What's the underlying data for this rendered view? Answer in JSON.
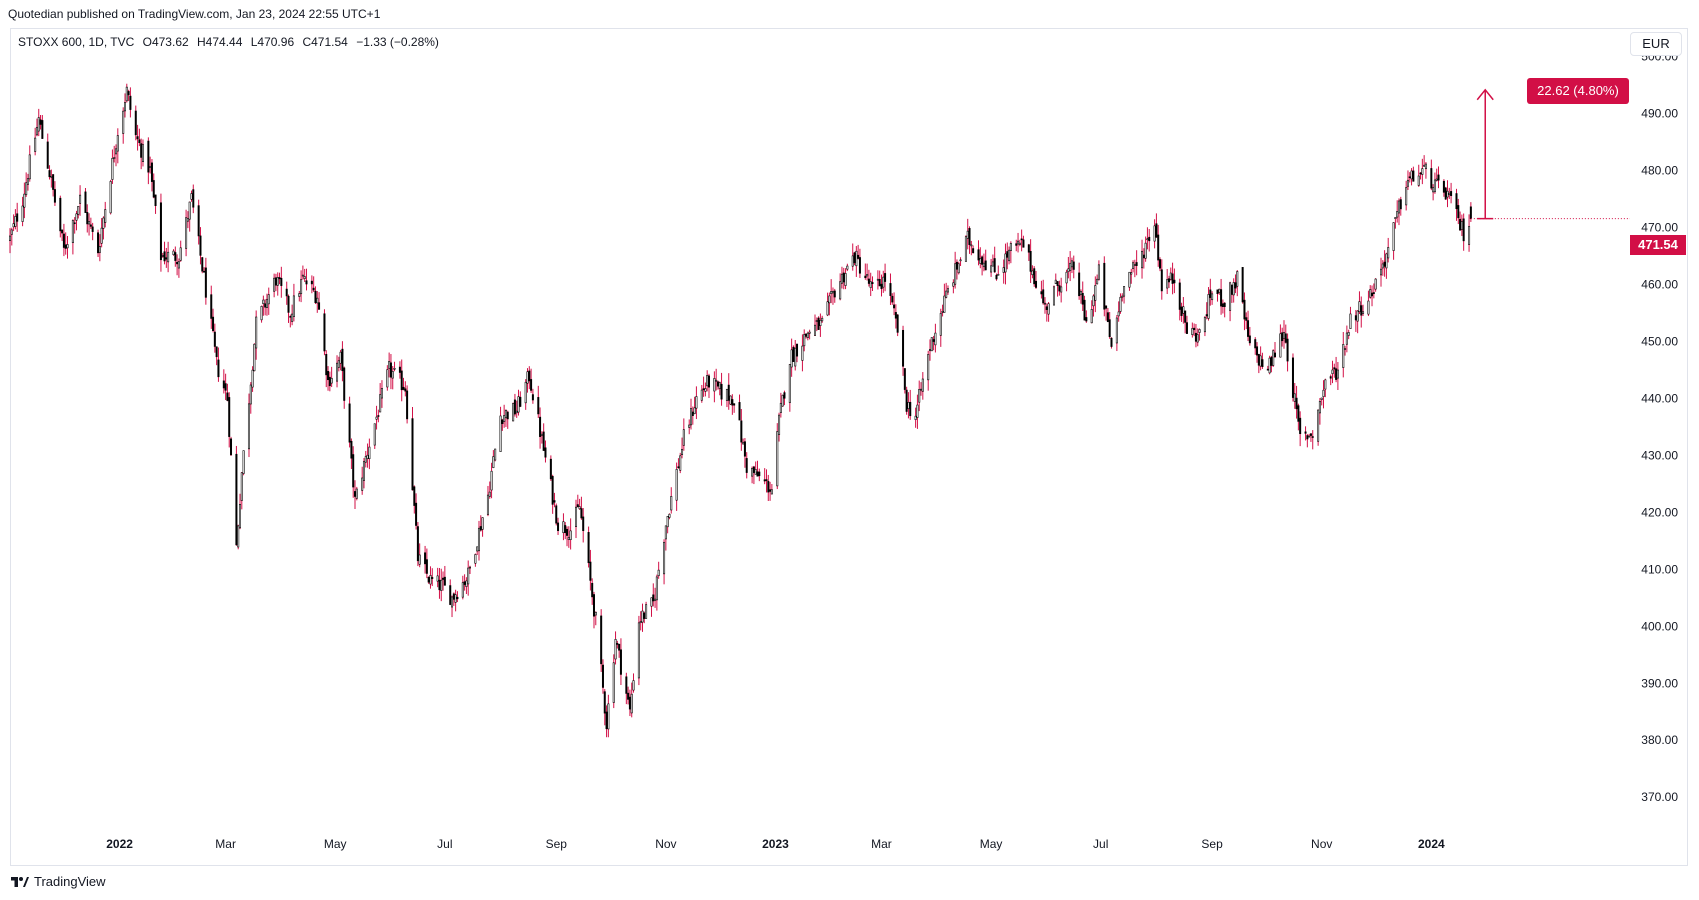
{
  "header": {
    "published": "Quotedian published on TradingView.com, Jan 23, 2024 22:55 UTC+1",
    "symbol": "STOXX 600, 1D, TVC",
    "open": "O473.62",
    "high": "H474.44",
    "low": "L470.96",
    "close": "C471.54",
    "change": "−1.33 (−0.28%)"
  },
  "currency": "EUR",
  "last_price_label": "471.54",
  "measure_label": "22.62 (4.80%)",
  "footer": {
    "brand": "TradingView"
  },
  "colors": {
    "up": "#ffffff",
    "up_border": "#000000",
    "down": "#000000",
    "wick": "#d20f46",
    "accent": "#d20f46",
    "grid": "#e0e3eb"
  },
  "chart_data": {
    "type": "candlestick",
    "title": "STOXX 600, 1D, TVC",
    "xlabel": "",
    "ylabel": "",
    "currency": "EUR",
    "ylim": [
      366,
      505
    ],
    "y_ticks": [
      "370.00",
      "380.00",
      "390.00",
      "400.00",
      "410.00",
      "420.00",
      "430.00",
      "440.00",
      "450.00",
      "460.00",
      "470.00",
      "480.00",
      "490.00",
      "500.00"
    ],
    "x_tick_labels": [
      "2022",
      "Mar",
      "May",
      "Jul",
      "Sep",
      "Nov",
      "2023",
      "Mar",
      "May",
      "Jul",
      "Sep",
      "Nov",
      "2024"
    ],
    "x_tick_dates": [
      "2022-01-01",
      "2022-03-01",
      "2022-05-01",
      "2022-07-01",
      "2022-09-01",
      "2022-11-01",
      "2023-01-01",
      "2023-03-01",
      "2023-05-01",
      "2023-07-01",
      "2023-09-01",
      "2023-11-01",
      "2024-01-01"
    ],
    "x_range": [
      "2021-11-01",
      "2024-02-11"
    ],
    "grid": false,
    "close_path": [
      [
        "2021-11-01",
        468
      ],
      [
        "2021-11-08",
        475
      ],
      [
        "2021-11-17",
        489
      ],
      [
        "2021-11-24",
        478
      ],
      [
        "2021-12-01",
        466
      ],
      [
        "2021-12-10",
        475
      ],
      [
        "2021-12-20",
        466
      ],
      [
        "2021-12-31",
        487
      ],
      [
        "2022-01-05",
        494
      ],
      [
        "2022-01-10",
        486
      ],
      [
        "2022-01-18",
        480
      ],
      [
        "2022-01-24",
        465
      ],
      [
        "2022-02-03",
        465
      ],
      [
        "2022-02-10",
        475
      ],
      [
        "2022-02-18",
        459
      ],
      [
        "2022-02-24",
        446
      ],
      [
        "2022-03-02",
        440
      ],
      [
        "2022-03-07",
        414
      ],
      [
        "2022-03-10",
        427
      ],
      [
        "2022-03-18",
        453
      ],
      [
        "2022-03-29",
        461
      ],
      [
        "2022-04-06",
        455
      ],
      [
        "2022-04-13",
        461
      ],
      [
        "2022-04-21",
        458
      ],
      [
        "2022-04-27",
        443
      ],
      [
        "2022-05-04",
        447
      ],
      [
        "2022-05-12",
        422
      ],
      [
        "2022-05-20",
        432
      ],
      [
        "2022-05-31",
        445
      ],
      [
        "2022-06-09",
        442
      ],
      [
        "2022-06-16",
        412
      ],
      [
        "2022-06-23",
        408
      ],
      [
        "2022-06-30",
        407
      ],
      [
        "2022-07-05",
        405
      ],
      [
        "2022-07-14",
        409
      ],
      [
        "2022-07-25",
        423
      ],
      [
        "2022-08-01",
        437
      ],
      [
        "2022-08-10",
        438
      ],
      [
        "2022-08-17",
        444
      ],
      [
        "2022-08-25",
        431
      ],
      [
        "2022-09-02",
        418
      ],
      [
        "2022-09-09",
        417
      ],
      [
        "2022-09-14",
        421
      ],
      [
        "2022-09-23",
        401
      ],
      [
        "2022-09-29",
        383
      ],
      [
        "2022-10-04",
        398
      ],
      [
        "2022-10-12",
        385
      ],
      [
        "2022-10-17",
        401
      ],
      [
        "2022-10-25",
        404
      ],
      [
        "2022-11-01",
        418
      ],
      [
        "2022-11-11",
        433
      ],
      [
        "2022-11-18",
        440
      ],
      [
        "2022-11-25",
        443
      ],
      [
        "2022-12-02",
        441
      ],
      [
        "2022-12-09",
        440
      ],
      [
        "2022-12-16",
        428
      ],
      [
        "2022-12-23",
        426
      ],
      [
        "2022-12-30",
        424
      ],
      [
        "2023-01-03",
        436
      ],
      [
        "2023-01-09",
        447
      ],
      [
        "2023-01-20",
        452
      ],
      [
        "2023-01-27",
        453
      ],
      [
        "2023-02-03",
        459
      ],
      [
        "2023-02-14",
        465
      ],
      [
        "2023-02-24",
        459
      ],
      [
        "2023-03-03",
        461
      ],
      [
        "2023-03-10",
        452
      ],
      [
        "2023-03-15",
        439
      ],
      [
        "2023-03-20",
        437
      ],
      [
        "2023-03-28",
        449
      ],
      [
        "2023-04-06",
        458
      ],
      [
        "2023-04-18",
        468
      ],
      [
        "2023-04-25",
        465
      ],
      [
        "2023-05-04",
        462
      ],
      [
        "2023-05-12",
        466
      ],
      [
        "2023-05-19",
        467
      ],
      [
        "2023-05-31",
        456
      ],
      [
        "2023-06-07",
        460
      ],
      [
        "2023-06-16",
        463
      ],
      [
        "2023-06-23",
        453
      ],
      [
        "2023-06-30",
        462
      ],
      [
        "2023-07-07",
        449
      ],
      [
        "2023-07-14",
        461
      ],
      [
        "2023-07-21",
        463
      ],
      [
        "2023-07-31",
        471
      ],
      [
        "2023-08-04",
        460
      ],
      [
        "2023-08-11",
        461
      ],
      [
        "2023-08-18",
        452
      ],
      [
        "2023-08-25",
        451
      ],
      [
        "2023-09-01",
        459
      ],
      [
        "2023-09-08",
        457
      ],
      [
        "2023-09-15",
        461
      ],
      [
        "2023-09-22",
        449
      ],
      [
        "2023-10-02",
        445
      ],
      [
        "2023-10-11",
        452
      ],
      [
        "2023-10-20",
        433
      ],
      [
        "2023-10-27",
        434
      ],
      [
        "2023-11-03",
        443
      ],
      [
        "2023-11-10",
        445
      ],
      [
        "2023-11-17",
        454
      ],
      [
        "2023-11-28",
        458
      ],
      [
        "2023-12-08",
        466
      ],
      [
        "2023-12-18",
        478
      ],
      [
        "2023-12-28",
        480
      ],
      [
        "2024-01-04",
        477
      ],
      [
        "2024-01-10",
        476
      ],
      [
        "2024-01-16",
        471
      ],
      [
        "2024-01-19",
        469
      ],
      [
        "2024-01-23",
        471.54
      ]
    ],
    "notable_levels": {
      "high_2022": 495,
      "low_2022": 380,
      "low_2023": 429,
      "high_2023": 482
    },
    "last": {
      "date": "2024-01-23",
      "open": 473.62,
      "high": 474.44,
      "low": 470.96,
      "close": 471.54,
      "change": -1.33,
      "change_pct": -0.28
    },
    "measure": {
      "from_price": 471.54,
      "to_price": 494.16,
      "change": 22.62,
      "change_pct": 4.8
    }
  }
}
